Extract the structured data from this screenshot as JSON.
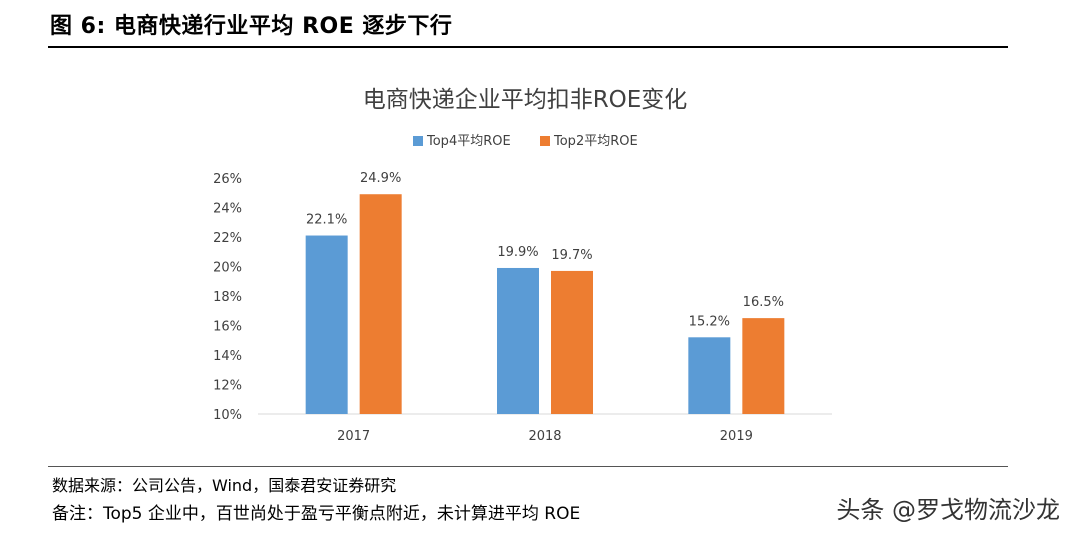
{
  "header": {
    "title": "图 6:  电商快递行业平均 ROE 逐步下行"
  },
  "footer": {
    "source": "数据来源：公司公告，Wind，国泰君安证券研究",
    "remark": "备注：Top5 企业中，百世尚处于盈亏平衡点附近，未计算进平均 ROE"
  },
  "watermark": "头条 @罗戈物流沙龙",
  "chart_data": {
    "type": "bar",
    "title": "电商快递企业平均扣非ROE变化",
    "categories": [
      "2017",
      "2018",
      "2019"
    ],
    "series": [
      {
        "name": "Top4平均ROE",
        "values": [
          22.1,
          19.9,
          15.2
        ],
        "color": "#5B9BD5"
      },
      {
        "name": "Top2平均ROE",
        "values": [
          24.9,
          19.7,
          16.5
        ],
        "color": "#ED7D31"
      }
    ],
    "data_labels": [
      [
        "22.1%",
        "19.9%",
        "15.2%"
      ],
      [
        "24.9%",
        "19.7%",
        "16.5%"
      ]
    ],
    "ylim": [
      10,
      26
    ],
    "yticks": [
      10,
      12,
      14,
      16,
      18,
      20,
      22,
      24,
      26
    ],
    "ytick_labels": [
      "10%",
      "12%",
      "14%",
      "16%",
      "18%",
      "20%",
      "22%",
      "24%",
      "26%"
    ],
    "xlabel": "",
    "ylabel": "",
    "legend_position": "top",
    "grid": false
  }
}
